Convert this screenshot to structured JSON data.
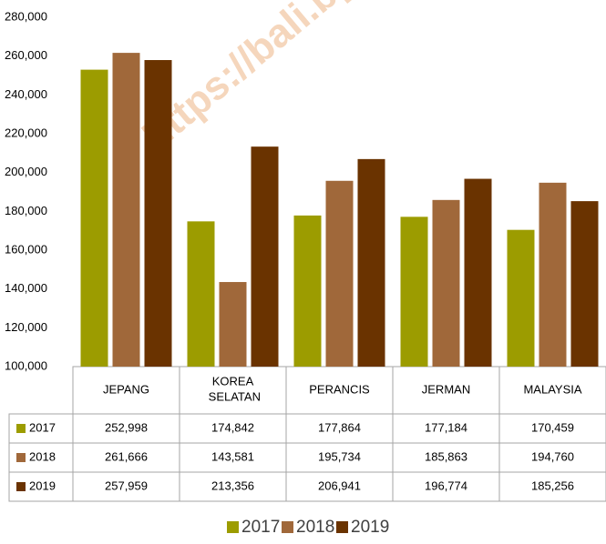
{
  "chart_data": {
    "type": "bar",
    "watermark": "https://bali.bps.go.id",
    "categories": [
      "JEPANG",
      "KOREA SELATAN",
      "PERANCIS",
      "JERMAN",
      "MALAYSIA"
    ],
    "series": [
      {
        "name": "2017",
        "color": "#9c9c00",
        "values": [
          252998,
          174842,
          177864,
          177184,
          170459
        ],
        "value_labels": [
          "252,998",
          "174,842",
          "177,864",
          "177,184",
          "170,459"
        ]
      },
      {
        "name": "2018",
        "color": "#a0683a",
        "values": [
          261666,
          143581,
          195734,
          185863,
          194760
        ],
        "value_labels": [
          "261,666",
          "143,581",
          "195,734",
          "185,863",
          "194,760"
        ]
      },
      {
        "name": "2019",
        "color": "#6a3300",
        "values": [
          257959,
          213356,
          206941,
          196774,
          185256
        ],
        "value_labels": [
          "257,959",
          "213,356",
          "206,941",
          "196,774",
          "185,256"
        ]
      }
    ],
    "ylim": [
      100000,
      280000
    ],
    "yticks": [
      {
        "value": 100000,
        "label": "100,000"
      },
      {
        "value": 120000,
        "label": "120,000"
      },
      {
        "value": 140000,
        "label": "140,000"
      },
      {
        "value": 160000,
        "label": "160,000"
      },
      {
        "value": 180000,
        "label": "180,000"
      },
      {
        "value": 200000,
        "label": "200,000"
      },
      {
        "value": 220000,
        "label": "220,000"
      },
      {
        "value": 240000,
        "label": "240,000"
      },
      {
        "value": 260000,
        "label": "260,000"
      },
      {
        "value": 280000,
        "label": "280,000"
      }
    ],
    "grid": false,
    "legend": "bottom"
  }
}
